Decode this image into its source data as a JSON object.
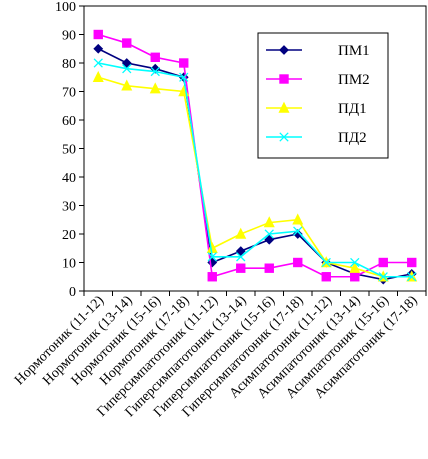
{
  "chart_data": {
    "type": "line",
    "categories": [
      "Нормотоник (11-12)",
      "Нормотоник (13-14)",
      "Нормотоник (15-16)",
      "Нормотоник (17-18)",
      "Гиперсимпатотоник (11-12)",
      "Гиперсимпатотоник (13-14)",
      "Гиперсимпатотоник (15-16)",
      "Гиперсимпатотоник (17-18)",
      "Асимпатотоник (11-12)",
      "Асимпатотоник (13-14)",
      "Асимпатотоник (15-16)",
      "Асимпатотоник (17-18)"
    ],
    "series": [
      {
        "name": "ПМ1",
        "color": "#000080",
        "marker": "diamond",
        "values": [
          85,
          80,
          78,
          75,
          10,
          14,
          18,
          20,
          10,
          6,
          4,
          6
        ]
      },
      {
        "name": "ПМ2",
        "color": "#ff00ff",
        "marker": "square",
        "values": [
          90,
          87,
          82,
          80,
          5,
          8,
          8,
          10,
          5,
          5,
          10,
          10
        ]
      },
      {
        "name": "ПД1",
        "color": "#ffff00",
        "marker": "triangle",
        "values": [
          75,
          72,
          71,
          70,
          15,
          20,
          24,
          25,
          10,
          8,
          5,
          5
        ]
      },
      {
        "name": "ПД2",
        "color": "#00ffff",
        "marker": "x",
        "values": [
          80,
          78,
          77,
          75,
          12,
          12,
          20,
          21,
          10,
          10,
          5,
          5
        ]
      }
    ],
    "ylim": [
      0,
      100
    ],
    "yticks": [
      "0",
      "10",
      "20",
      "30",
      "40",
      "50",
      "60",
      "70",
      "80",
      "90",
      "100"
    ],
    "xlabel": "",
    "ylabel": "",
    "legend": "right",
    "grid": false
  }
}
